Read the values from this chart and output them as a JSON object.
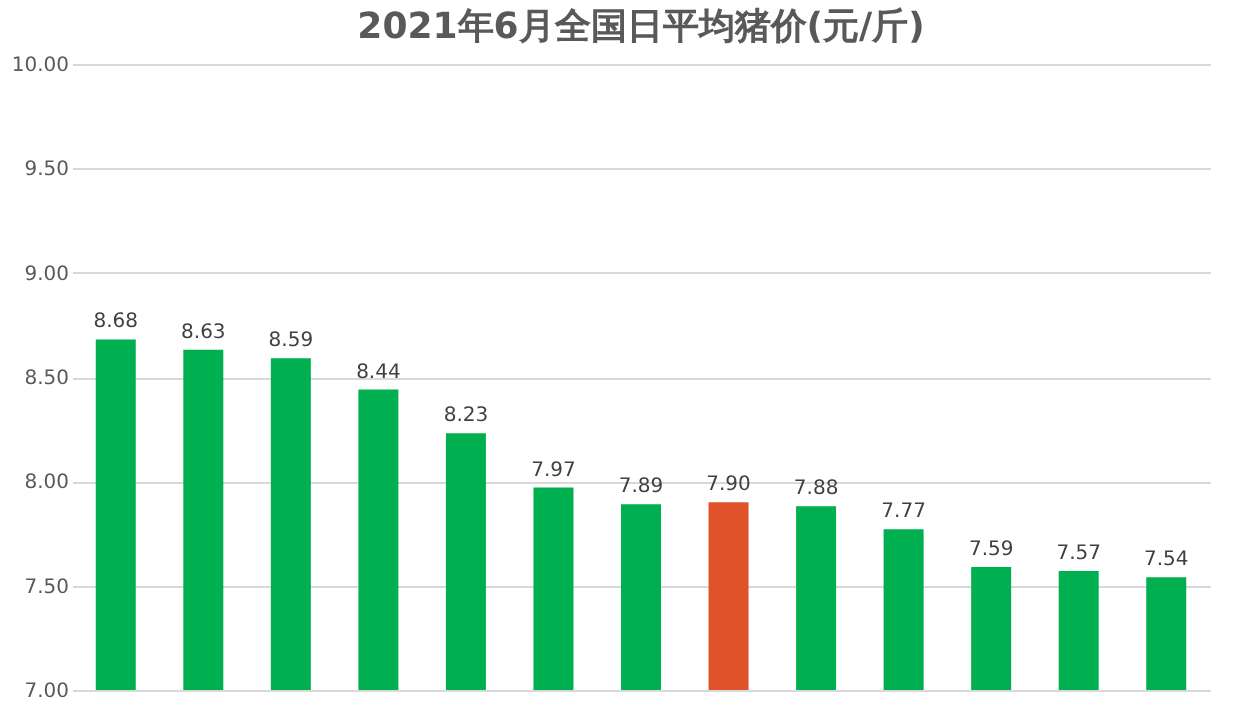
{
  "chart_data": {
    "type": "bar",
    "title": "2021年6月全国日平均猪价(元/斤)",
    "categories": [
      null,
      null,
      null,
      null,
      null,
      null,
      null,
      null,
      null,
      null,
      null,
      null,
      null
    ],
    "values": [
      8.68,
      8.63,
      8.59,
      8.44,
      8.23,
      7.97,
      7.89,
      7.9,
      7.88,
      7.77,
      7.59,
      7.57,
      7.54
    ],
    "value_labels": [
      "8.68",
      "8.63",
      "8.59",
      "8.44",
      "8.23",
      "7.97",
      "7.89",
      "7.90",
      "7.88",
      "7.77",
      "7.59",
      "7.57",
      "7.54"
    ],
    "colors": [
      "#00b050",
      "#00b050",
      "#00b050",
      "#00b050",
      "#00b050",
      "#00b050",
      "#00b050",
      "#e0522a",
      "#00b050",
      "#00b050",
      "#00b050",
      "#00b050",
      "#00b050"
    ],
    "ylim": [
      7,
      10
    ],
    "yticks": [
      {
        "value": 7,
        "label": "7.00"
      },
      {
        "value": 7.5,
        "label": "7.50"
      },
      {
        "value": 8,
        "label": "8.00"
      },
      {
        "value": 8.5,
        "label": "8.50"
      },
      {
        "value": 9,
        "label": "9.00"
      },
      {
        "value": 9.5,
        "label": "9.50"
      },
      {
        "value": 10,
        "label": "10.00"
      }
    ],
    "grid": "y",
    "tick_labels": "y"
  }
}
